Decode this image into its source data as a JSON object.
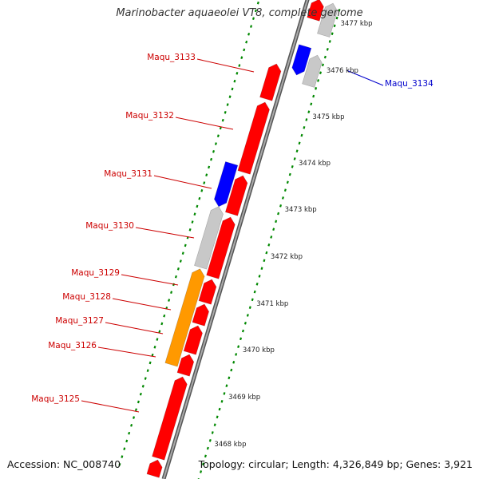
{
  "title": "Marinobacter aquaeolei VT8, complete genome",
  "footer": {
    "accession": "Accession: NC_008740",
    "topology": "Topology: circular; Length: 4,326,849 bp; Genes: 3,921"
  },
  "colors": {
    "forward_gene": "#ff0000",
    "reverse_gene": "#0000ff",
    "other_gene": "#c8c8c8",
    "orange_feature": "#ff9900",
    "backbone": "#888888",
    "tick": "#008800",
    "label_left": "#cc0000",
    "label_right": "#0000cc"
  },
  "ruler": [
    {
      "label": "3477 kbp"
    },
    {
      "label": "3476 kbp"
    },
    {
      "label": "3475 kbp"
    },
    {
      "label": "3474 kbp"
    },
    {
      "label": "3473 kbp"
    },
    {
      "label": "3472 kbp"
    },
    {
      "label": "3471 kbp"
    },
    {
      "label": "3470 kbp"
    },
    {
      "label": "3469 kbp"
    },
    {
      "label": "3468 kbp"
    }
  ],
  "gene_labels": [
    {
      "name": "Maqu_3133"
    },
    {
      "name": "Maqu_3132"
    },
    {
      "name": "Maqu_3131"
    },
    {
      "name": "Maqu_3130"
    },
    {
      "name": "Maqu_3129"
    },
    {
      "name": "Maqu_3128"
    },
    {
      "name": "Maqu_3127"
    },
    {
      "name": "Maqu_3126"
    },
    {
      "name": "Maqu_3125"
    },
    {
      "name": "Maqu_3134"
    }
  ]
}
